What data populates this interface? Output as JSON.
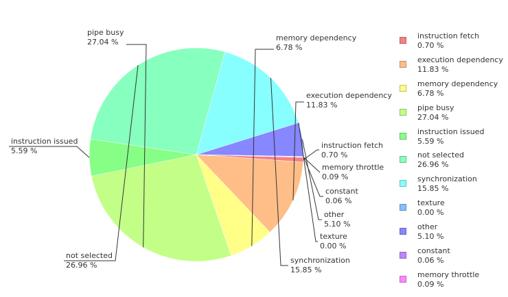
{
  "chart_data": {
    "type": "pie",
    "title": "",
    "legend_position": "right",
    "slices": [
      {
        "label": "instruction fetch",
        "value": 0.7,
        "value_label": "0.70 %",
        "color": "#F48282"
      },
      {
        "label": "execution dependency",
        "value": 11.83,
        "value_label": "11.83 %",
        "color": "#FFBE87"
      },
      {
        "label": "memory dependency",
        "value": 6.78,
        "value_label": "6.78 %",
        "color": "#FFFF87"
      },
      {
        "label": "pipe busy",
        "value": 27.04,
        "value_label": "27.04 %",
        "color": "#C3FF87"
      },
      {
        "label": "instruction issued",
        "value": 5.59,
        "value_label": "5.59 %",
        "color": "#87FF87"
      },
      {
        "label": "not selected",
        "value": 26.96,
        "value_label": "26.96 %",
        "color": "#87FFBE"
      },
      {
        "label": "synchronization",
        "value": 15.85,
        "value_label": "15.85 %",
        "color": "#87FFFF"
      },
      {
        "label": "texture",
        "value": 0.0,
        "value_label": "0.00 %",
        "color": "#87BEFF"
      },
      {
        "label": "other",
        "value": 5.1,
        "value_label": "5.10 %",
        "color": "#8787FF"
      },
      {
        "label": "constant",
        "value": 0.06,
        "value_label": "0.06 %",
        "color": "#BE87FF"
      },
      {
        "label": "memory throttle",
        "value": 0.09,
        "value_label": "0.09 %",
        "color": "#FF87FF"
      }
    ]
  }
}
